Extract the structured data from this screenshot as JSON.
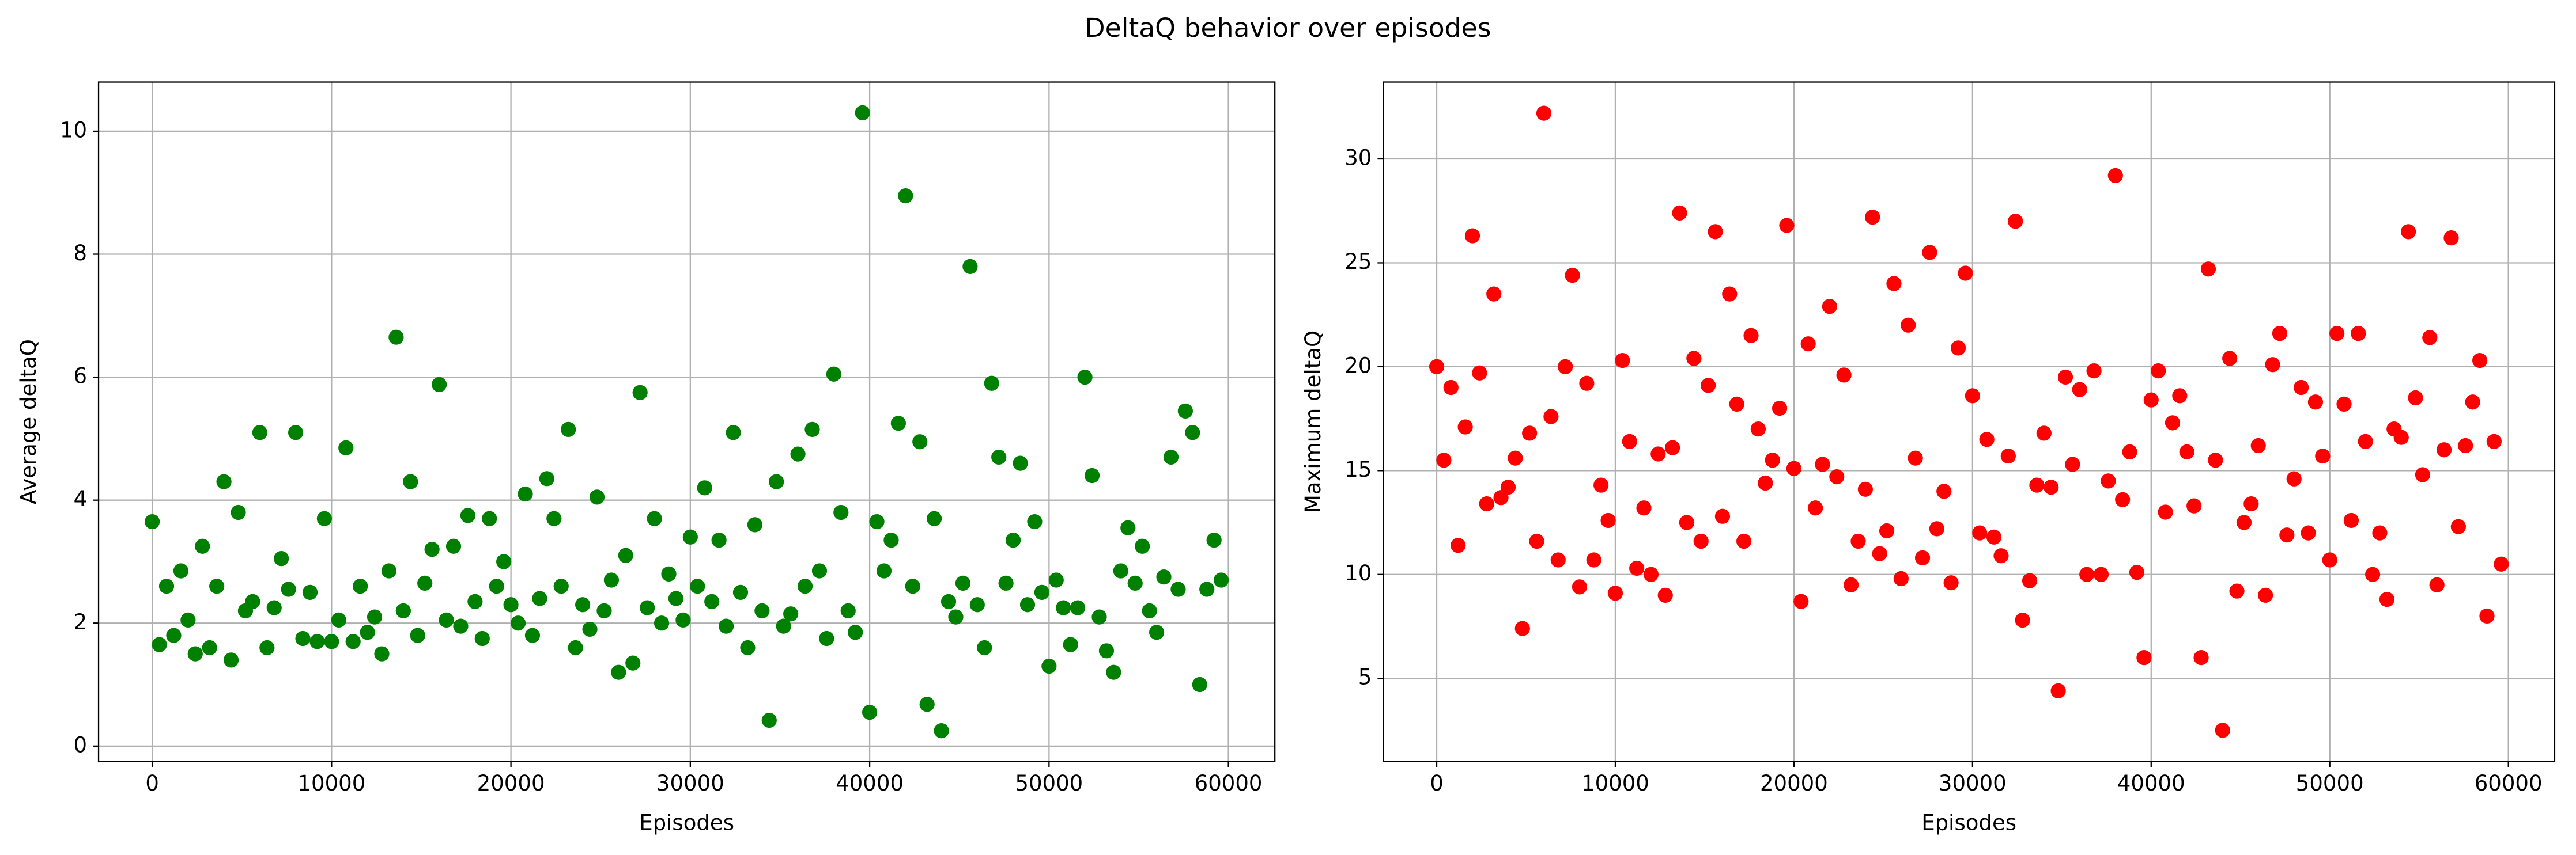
{
  "title": "DeltaQ behavior over episodes",
  "chart_data": [
    {
      "type": "scatter",
      "xlabel": "Episodes",
      "ylabel": "Average deltaQ",
      "color": "#008000",
      "grid": true,
      "xlim": [
        -2990,
        62590
      ],
      "xticks": [
        0,
        10000,
        20000,
        30000,
        40000,
        50000,
        60000
      ],
      "ylim": [
        -0.25,
        10.8
      ],
      "yticks": [
        0,
        2,
        4,
        6,
        8,
        10
      ],
      "x": [
        0,
        400,
        800,
        1200,
        1600,
        2000,
        2400,
        2800,
        3200,
        3600,
        4000,
        4400,
        4800,
        5200,
        5600,
        6000,
        6400,
        6800,
        7200,
        7600,
        8000,
        8400,
        8800,
        9200,
        9600,
        10000,
        10400,
        10800,
        11200,
        11600,
        12000,
        12400,
        12800,
        13200,
        13600,
        14000,
        14400,
        14800,
        15200,
        15600,
        16000,
        16400,
        16800,
        17200,
        17600,
        18000,
        18400,
        18800,
        19200,
        19600,
        20000,
        20400,
        20800,
        21200,
        21600,
        22000,
        22400,
        22800,
        23200,
        23600,
        24000,
        24400,
        24800,
        25200,
        25600,
        26000,
        26400,
        26800,
        27200,
        27600,
        28000,
        28400,
        28800,
        29200,
        29600,
        30000,
        30400,
        30800,
        31200,
        31600,
        32000,
        32400,
        32800,
        33200,
        33600,
        34000,
        34400,
        34800,
        35200,
        35600,
        36000,
        36400,
        36800,
        37200,
        37600,
        38000,
        38400,
        38800,
        39200,
        39600,
        40000,
        40400,
        40800,
        41200,
        41600,
        42000,
        42400,
        42800,
        43200,
        43600,
        44000,
        44400,
        44800,
        45200,
        45600,
        46000,
        46400,
        46800,
        47200,
        47600,
        48000,
        48400,
        48800,
        49200,
        49600,
        50000,
        50400,
        50800,
        51200,
        51600,
        52000,
        52400,
        52800,
        53200,
        53600,
        54000,
        54400,
        54800,
        55200,
        55600,
        56000,
        56400,
        56800,
        57200,
        57600,
        58000,
        58400,
        58800,
        59200,
        59600
      ],
      "values": [
        3.65,
        1.65,
        2.6,
        1.8,
        2.85,
        2.05,
        1.5,
        3.25,
        1.6,
        2.6,
        4.3,
        1.4,
        3.8,
        2.2,
        2.35,
        5.1,
        1.6,
        2.25,
        3.05,
        2.55,
        5.1,
        1.75,
        2.5,
        1.7,
        3.7,
        1.7,
        2.05,
        4.85,
        1.7,
        2.6,
        1.85,
        2.1,
        1.5,
        2.85,
        6.65,
        2.2,
        4.3,
        1.8,
        2.65,
        3.2,
        5.88,
        2.05,
        3.25,
        1.95,
        3.75,
        2.35,
        1.75,
        3.7,
        2.6,
        3.0,
        2.3,
        2.0,
        4.1,
        1.8,
        2.4,
        4.35,
        3.7,
        2.6,
        5.15,
        1.6,
        2.3,
        1.9,
        4.05,
        2.2,
        2.7,
        1.2,
        3.1,
        1.35,
        5.75,
        2.25,
        3.7,
        2.0,
        2.8,
        2.4,
        2.05,
        3.4,
        2.6,
        4.2,
        2.35,
        3.35,
        1.95,
        5.1,
        2.5,
        1.6,
        3.6,
        2.2,
        0.42,
        4.3,
        1.95,
        2.15,
        4.75,
        2.6,
        5.15,
        2.85,
        1.75,
        6.05,
        3.8,
        2.2,
        1.85,
        10.3,
        0.55,
        3.65,
        2.85,
        3.35,
        5.25,
        8.95,
        2.6,
        4.95,
        0.68,
        3.7,
        0.25,
        2.35,
        2.1,
        2.65,
        7.8,
        2.3,
        1.6,
        5.9,
        4.7,
        2.65,
        3.35,
        4.6,
        2.3,
        3.65,
        2.5,
        1.3,
        2.7,
        2.25,
        1.65,
        2.25,
        6.0,
        4.4,
        2.1,
        1.55,
        1.2,
        2.85,
        3.55,
        2.65,
        3.25,
        2.2,
        1.85,
        2.75,
        4.7,
        2.55,
        5.45,
        5.1,
        1.0,
        2.55,
        3.35,
        2.7
      ]
    },
    {
      "type": "scatter",
      "xlabel": "Episodes",
      "ylabel": "Maximum deltaQ",
      "color": "#ff0000",
      "grid": true,
      "xlim": [
        -2990,
        62590
      ],
      "xticks": [
        0,
        10000,
        20000,
        30000,
        40000,
        50000,
        60000
      ],
      "ylim": [
        1.0,
        33.7
      ],
      "yticks": [
        5,
        10,
        15,
        20,
        25,
        30
      ],
      "x": [
        0,
        400,
        800,
        1200,
        1600,
        2000,
        2400,
        2800,
        3200,
        3600,
        4000,
        4400,
        4800,
        5200,
        5600,
        6000,
        6400,
        6800,
        7200,
        7600,
        8000,
        8400,
        8800,
        9200,
        9600,
        10000,
        10400,
        10800,
        11200,
        11600,
        12000,
        12400,
        12800,
        13200,
        13600,
        14000,
        14400,
        14800,
        15200,
        15600,
        16000,
        16400,
        16800,
        17200,
        17600,
        18000,
        18400,
        18800,
        19200,
        19600,
        20000,
        20400,
        20800,
        21200,
        21600,
        22000,
        22400,
        22800,
        23200,
        23600,
        24000,
        24400,
        24800,
        25200,
        25600,
        26000,
        26400,
        26800,
        27200,
        27600,
        28000,
        28400,
        28800,
        29200,
        29600,
        30000,
        30400,
        30800,
        31200,
        31600,
        32000,
        32400,
        32800,
        33200,
        33600,
        34000,
        34400,
        34800,
        35200,
        35600,
        36000,
        36400,
        36800,
        37200,
        37600,
        38000,
        38400,
        38800,
        39200,
        39600,
        40000,
        40400,
        40800,
        41200,
        41600,
        42000,
        42400,
        42800,
        43200,
        43600,
        44000,
        44400,
        44800,
        45200,
        45600,
        46000,
        46400,
        46800,
        47200,
        47600,
        48000,
        48400,
        48800,
        49200,
        49600,
        50000,
        50400,
        50800,
        51200,
        51600,
        52000,
        52400,
        52800,
        53200,
        53600,
        54000,
        54400,
        54800,
        55200,
        55600,
        56000,
        56400,
        56800,
        57200,
        57600,
        58000,
        58400,
        58800,
        59200,
        59600
      ],
      "values": [
        20.0,
        15.5,
        19.0,
        11.4,
        17.1,
        26.3,
        19.7,
        13.4,
        23.5,
        13.7,
        14.2,
        15.6,
        7.4,
        16.8,
        11.6,
        32.2,
        17.6,
        10.7,
        20.0,
        24.4,
        9.4,
        19.2,
        10.7,
        14.3,
        12.6,
        9.1,
        20.3,
        16.4,
        10.3,
        13.2,
        10.0,
        15.8,
        9.0,
        16.1,
        27.4,
        12.5,
        20.4,
        11.6,
        19.1,
        26.5,
        12.8,
        23.5,
        18.2,
        11.6,
        21.5,
        17.0,
        14.4,
        15.5,
        18.0,
        26.8,
        15.1,
        8.7,
        21.1,
        13.2,
        15.3,
        22.9,
        14.7,
        19.6,
        9.5,
        11.6,
        14.1,
        27.2,
        11.0,
        12.1,
        24.0,
        9.8,
        22.0,
        15.6,
        10.8,
        25.5,
        12.2,
        14.0,
        9.6,
        20.9,
        24.5,
        18.6,
        12.0,
        16.5,
        11.8,
        10.9,
        15.7,
        27.0,
        7.8,
        9.7,
        14.3,
        16.8,
        14.2,
        4.4,
        19.5,
        15.3,
        18.9,
        10.0,
        19.8,
        10.0,
        14.5,
        29.2,
        13.6,
        15.9,
        10.1,
        6.0,
        18.4,
        19.8,
        13.0,
        17.3,
        18.6,
        15.9,
        13.3,
        6.0,
        24.7,
        15.5,
        2.5,
        20.4,
        9.2,
        12.5,
        13.4,
        16.2,
        9.0,
        20.1,
        21.6,
        11.9,
        14.6,
        19.0,
        12.0,
        18.3,
        15.7,
        10.7,
        21.6,
        18.2,
        12.6,
        21.6,
        16.4,
        10.0,
        12.0,
        8.8,
        17.0,
        16.6,
        26.5,
        18.5,
        14.8,
        21.4,
        9.5,
        16.0,
        26.2,
        12.3,
        16.2,
        18.3,
        20.3,
        8.0,
        16.4,
        10.5
      ]
    }
  ]
}
